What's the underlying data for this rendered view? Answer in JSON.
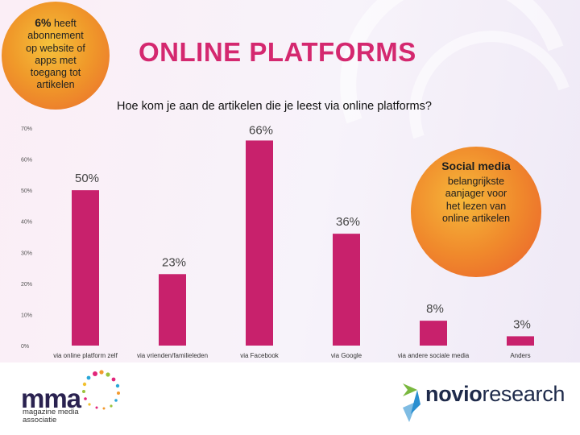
{
  "header": {
    "title": "ONLINE PLATFORMS",
    "subtitle": "Hoe kom je aan de artikelen die je leest via online platforms?"
  },
  "callout_left": {
    "highlight": "6%",
    "text_line1": " heeft",
    "text_rest": [
      "abonnement",
      "op website of",
      "apps met",
      "toegang tot",
      "artikelen"
    ]
  },
  "callout_right": {
    "heading": "Social media",
    "lines": [
      "belangrijkste",
      "aanjager voor",
      "het lezen van",
      "online artikelen"
    ]
  },
  "colors": {
    "bar": "#c8216c",
    "title": "#d4286f",
    "callout": "#f09a2a"
  },
  "chart_data": {
    "type": "bar",
    "categories": [
      "via online platform zelf",
      "via vrienden/familieleden",
      "via Facebook",
      "via Google",
      "via andere sociale media",
      "Anders"
    ],
    "values": [
      50,
      23,
      66,
      36,
      8,
      3
    ],
    "data_labels": [
      "50%",
      "23%",
      "66%",
      "36%",
      "8%",
      "3%"
    ],
    "yticks": [
      "0%",
      "10%",
      "20%",
      "30%",
      "40%",
      "50%",
      "60%",
      "70%"
    ],
    "ylim": [
      0,
      70
    ],
    "grid": false,
    "legend": "none"
  },
  "footer": {
    "mma_logo": "mma",
    "mma_tagline": [
      "magazine media",
      "associatie"
    ],
    "novio_logo_a": "novio",
    "novio_logo_b": "research"
  }
}
